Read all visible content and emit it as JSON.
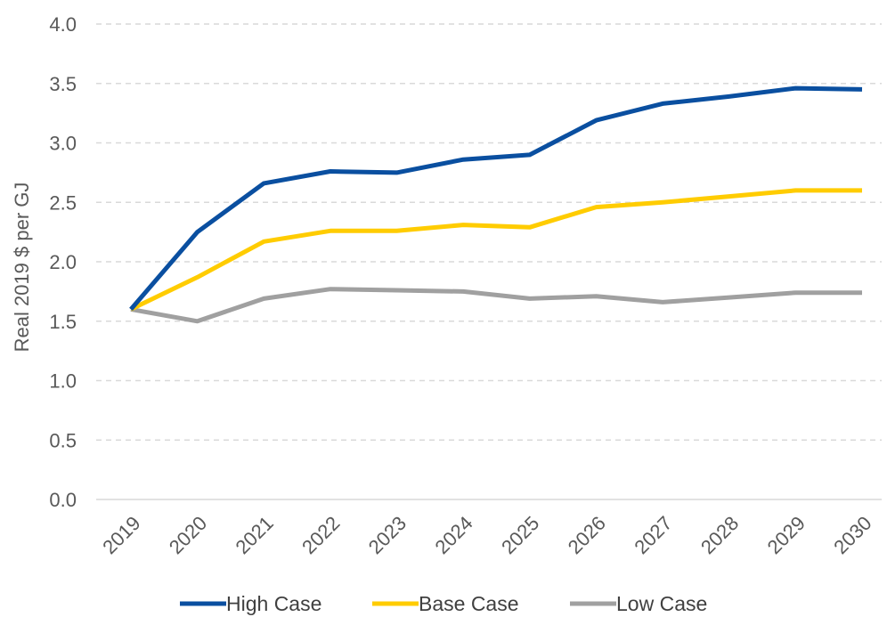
{
  "chart_data": {
    "type": "line",
    "title": "",
    "xlabel": "",
    "ylabel": "Real 2019 $ per GJ",
    "ylim": [
      0,
      4
    ],
    "yticks": [
      0.0,
      0.5,
      1.0,
      1.5,
      2.0,
      2.5,
      3.0,
      3.5,
      4.0
    ],
    "ytick_labels": [
      "0.0",
      "0.5",
      "1.0",
      "1.5",
      "2.0",
      "2.5",
      "3.0",
      "3.5",
      "4.0"
    ],
    "categories": [
      "2019",
      "2020",
      "2021",
      "2022",
      "2023",
      "2024",
      "2025",
      "2026",
      "2027",
      "2028",
      "2029",
      "2030"
    ],
    "grid": "horizontal dashed",
    "legend_position": "bottom",
    "series": [
      {
        "name": "High Case",
        "color": "#0a4fa0",
        "values": [
          1.6,
          2.25,
          2.66,
          2.76,
          2.75,
          2.86,
          2.9,
          3.19,
          3.33,
          3.39,
          3.46,
          3.45
        ]
      },
      {
        "name": "Base Case",
        "color": "#ffcc00",
        "values": [
          1.6,
          1.87,
          2.17,
          2.26,
          2.26,
          2.31,
          2.29,
          2.46,
          2.5,
          2.55,
          2.6,
          2.6
        ]
      },
      {
        "name": "Low Case",
        "color": "#a0a0a0",
        "values": [
          1.6,
          1.5,
          1.69,
          1.77,
          1.76,
          1.75,
          1.69,
          1.71,
          1.66,
          1.7,
          1.74,
          1.74
        ]
      }
    ]
  }
}
